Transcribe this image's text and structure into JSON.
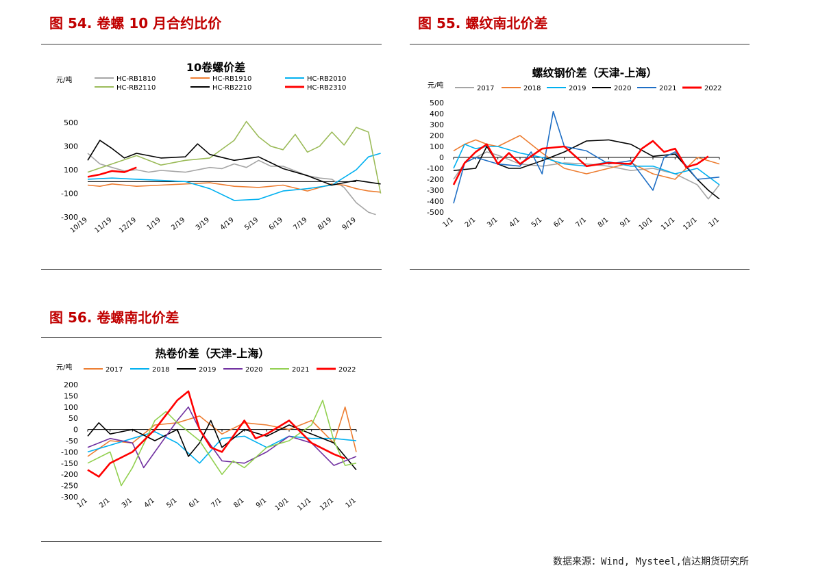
{
  "figures": [
    {
      "title": "图 54. 卷螺 10 月合约比价"
    },
    {
      "title": "图 55. 螺纹南北价差"
    },
    {
      "title": "图 56. 卷螺南北价差"
    }
  ],
  "source": "数据来源：Wind, Mysteel,信达期货研究所",
  "chart_data": [
    {
      "type": "line",
      "title": "10卷螺价差",
      "ylabel": "元/吨",
      "ylim": [
        -300,
        600
      ],
      "y_ticks": [
        500,
        300,
        100,
        -100,
        -300
      ],
      "x_ticks": [
        "10/19",
        "11/19",
        "12/19",
        "1/19",
        "2/19",
        "3/19",
        "4/19",
        "5/19",
        "6/19",
        "7/19",
        "8/19",
        "9/19"
      ],
      "zero_line": true,
      "series": [
        {
          "name": "HC-RB1810",
          "color": "#a5a5a5",
          "x": [
            0,
            0.5,
            1,
            1.5,
            2,
            2.5,
            3,
            4,
            5,
            5.5,
            6,
            6.5,
            7,
            7.5,
            8,
            8.5,
            9,
            9.5,
            10,
            10.5,
            11,
            11.5,
            11.8
          ],
          "values": [
            240,
            150,
            120,
            90,
            100,
            80,
            95,
            80,
            120,
            110,
            150,
            120,
            180,
            130,
            130,
            90,
            50,
            30,
            20,
            -50,
            -180,
            -260,
            -280
          ]
        },
        {
          "name": "HC-RB1910",
          "color": "#ed7d31",
          "x": [
            0,
            0.5,
            1,
            1.5,
            2,
            3,
            4,
            5,
            6,
            7,
            8,
            9,
            10,
            10.5,
            11,
            11.5,
            12
          ],
          "values": [
            -30,
            -40,
            -20,
            -30,
            -40,
            -30,
            -20,
            -10,
            -40,
            -50,
            -30,
            -80,
            -20,
            -30,
            -60,
            -80,
            -90
          ]
        },
        {
          "name": "HC-RB2010",
          "color": "#00b0f0",
          "x": [
            0,
            1,
            2,
            3,
            4,
            5,
            6,
            7,
            8,
            9,
            10,
            11,
            11.5,
            12
          ],
          "values": [
            20,
            30,
            20,
            10,
            0,
            -60,
            -160,
            -150,
            -80,
            -60,
            -30,
            100,
            210,
            240
          ]
        },
        {
          "name": "HC-RB2110",
          "color": "#9bbb59",
          "x": [
            0,
            1,
            2,
            3,
            4,
            5,
            6,
            6.5,
            7,
            7.5,
            8,
            8.5,
            9,
            9.5,
            10,
            10.5,
            11,
            11.5,
            12
          ],
          "values": [
            80,
            150,
            220,
            140,
            180,
            200,
            350,
            510,
            380,
            300,
            270,
            400,
            250,
            300,
            420,
            310,
            460,
            420,
            -100
          ]
        },
        {
          "name": "HC-RB2210",
          "color": "#000000",
          "x": [
            0,
            0.5,
            1,
            1.5,
            2,
            3,
            4,
            4.5,
            5,
            6,
            7,
            8,
            9,
            10,
            11,
            12
          ],
          "values": [
            180,
            350,
            280,
            200,
            240,
            200,
            210,
            320,
            230,
            180,
            210,
            110,
            50,
            -30,
            10,
            -20
          ]
        },
        {
          "name": "HC-RB2310",
          "color": "#ff0000",
          "x": [
            0,
            0.5,
            1,
            1.5,
            2
          ],
          "values": [
            40,
            60,
            90,
            80,
            120
          ]
        }
      ]
    },
    {
      "type": "line",
      "title": "螺纹钢价差（天津-上海）",
      "ylabel": "元/吨",
      "ylim": [
        -500,
        500
      ],
      "y_ticks": [
        500,
        400,
        300,
        200,
        100,
        0,
        -100,
        -200,
        -300,
        -400,
        -500
      ],
      "x_ticks": [
        "1/1",
        "2/1",
        "3/1",
        "4/1",
        "5/1",
        "6/1",
        "7/1",
        "8/1",
        "9/1",
        "10/1",
        "11/1",
        "12/1",
        "1/1"
      ],
      "zero_line": true,
      "series": [
        {
          "name": "2017",
          "color": "#a5a5a5",
          "x": [
            0,
            0.5,
            1,
            1.5,
            2,
            3,
            4,
            5,
            6,
            7,
            8,
            9,
            10,
            11,
            11.5,
            12
          ],
          "values": [
            -200,
            -50,
            0,
            50,
            20,
            -60,
            -80,
            -50,
            -60,
            -80,
            -120,
            -100,
            -150,
            -250,
            -380,
            -250
          ]
        },
        {
          "name": "2018",
          "color": "#ed7d31",
          "x": [
            0,
            0.5,
            1,
            1.5,
            2,
            3,
            4,
            5,
            6,
            7,
            8,
            9,
            10,
            11,
            12
          ],
          "values": [
            60,
            120,
            160,
            120,
            100,
            200,
            40,
            -100,
            -150,
            -100,
            -50,
            -150,
            -200,
            0,
            -60
          ]
        },
        {
          "name": "2019",
          "color": "#00b0f0",
          "x": [
            0,
            0.5,
            1,
            1.5,
            2,
            3,
            4,
            5,
            6,
            7,
            8,
            9,
            10,
            11,
            12
          ],
          "values": [
            -100,
            120,
            80,
            100,
            100,
            40,
            0,
            -60,
            -80,
            -40,
            -80,
            -80,
            -150,
            -100,
            -250
          ]
        },
        {
          "name": "2020",
          "color": "#000000",
          "x": [
            0,
            1,
            1.5,
            2,
            2.5,
            3,
            4,
            5,
            6,
            7,
            8,
            9,
            10,
            11,
            11.5,
            12
          ],
          "values": [
            -120,
            -100,
            100,
            -60,
            -100,
            -100,
            -30,
            50,
            150,
            160,
            120,
            10,
            30,
            -200,
            -300,
            -380
          ]
        },
        {
          "name": "2021",
          "color": "#1f6fc5",
          "x": [
            0,
            0.5,
            1,
            2,
            3,
            3.5,
            4,
            4.5,
            5,
            6,
            7,
            8,
            9,
            9.5,
            10,
            11,
            12
          ],
          "values": [
            -420,
            -50,
            0,
            -60,
            -80,
            50,
            -150,
            420,
            100,
            60,
            -60,
            -30,
            -300,
            0,
            50,
            -200,
            -180
          ]
        },
        {
          "name": "2022",
          "color": "#ff0000",
          "x": [
            0,
            0.5,
            1,
            1.5,
            2,
            2.5,
            3,
            4,
            5,
            6,
            7,
            8,
            8.5,
            9,
            9.5,
            10,
            10.5,
            11,
            11.5
          ],
          "values": [
            -250,
            -50,
            50,
            120,
            -60,
            40,
            -60,
            80,
            100,
            -80,
            -50,
            -60,
            80,
            150,
            50,
            80,
            -90,
            -60,
            10
          ]
        }
      ]
    },
    {
      "type": "line",
      "title": "热卷价差（天津-上海）",
      "ylabel": "元/吨",
      "ylim": [
        -300,
        200
      ],
      "y_ticks": [
        200,
        150,
        100,
        50,
        0,
        -50,
        -100,
        -150,
        -200,
        -250,
        -300
      ],
      "x_ticks": [
        "1/1",
        "2/1",
        "3/1",
        "4/1",
        "5/1",
        "6/1",
        "7/1",
        "8/1",
        "9/1",
        "10/1",
        "11/1",
        "12/1",
        "1/1"
      ],
      "zero_line": true,
      "series": [
        {
          "name": "2017",
          "color": "#ed7d31",
          "x": [
            0,
            1,
            2,
            3,
            4,
            5,
            6,
            7,
            8,
            9,
            10,
            11,
            11.5,
            12
          ],
          "values": [
            -120,
            -50,
            -60,
            20,
            30,
            60,
            -20,
            30,
            20,
            0,
            40,
            -60,
            100,
            -100
          ]
        },
        {
          "name": "2018",
          "color": "#00b0f0",
          "x": [
            0,
            1,
            2,
            3,
            4,
            5,
            6,
            7,
            8,
            9,
            10,
            11,
            12
          ],
          "values": [
            -100,
            -70,
            -40,
            -10,
            -60,
            -150,
            -40,
            -30,
            -80,
            -30,
            -40,
            -40,
            -50
          ]
        },
        {
          "name": "2019",
          "color": "#000000",
          "x": [
            0,
            0.5,
            1,
            2,
            3,
            4,
            4.5,
            5,
            5.5,
            6,
            7,
            8,
            9,
            10,
            11,
            12
          ],
          "values": [
            -30,
            30,
            -20,
            0,
            -50,
            0,
            -120,
            -60,
            40,
            -80,
            0,
            -30,
            20,
            -20,
            -60,
            -180
          ]
        },
        {
          "name": "2020",
          "color": "#7030a0",
          "x": [
            0,
            1,
            2,
            2.5,
            3,
            4,
            4.5,
            5,
            6,
            7,
            8,
            9,
            10,
            11,
            12
          ],
          "values": [
            -80,
            -40,
            -60,
            -170,
            -100,
            40,
            100,
            0,
            -140,
            -150,
            -100,
            -30,
            -60,
            -160,
            -120
          ]
        },
        {
          "name": "2021",
          "color": "#92d050",
          "x": [
            0,
            1,
            1.5,
            2,
            3,
            3.5,
            4,
            5,
            6,
            6.5,
            7,
            8,
            9,
            10,
            10.5,
            11,
            11.5,
            12
          ],
          "values": [
            -150,
            -100,
            -250,
            -170,
            40,
            80,
            30,
            -50,
            -200,
            -140,
            -170,
            -80,
            -50,
            20,
            130,
            -50,
            -160,
            -150
          ]
        },
        {
          "name": "2022",
          "color": "#ff0000",
          "x": [
            0,
            0.5,
            1,
            2,
            3,
            4,
            4.5,
            5,
            5.5,
            6,
            7,
            7.5,
            8,
            9,
            10,
            11,
            11.5
          ],
          "values": [
            -180,
            -210,
            -150,
            -100,
            0,
            130,
            170,
            0,
            -80,
            -100,
            40,
            -40,
            -20,
            40,
            -60,
            -110,
            -130
          ]
        }
      ]
    }
  ]
}
